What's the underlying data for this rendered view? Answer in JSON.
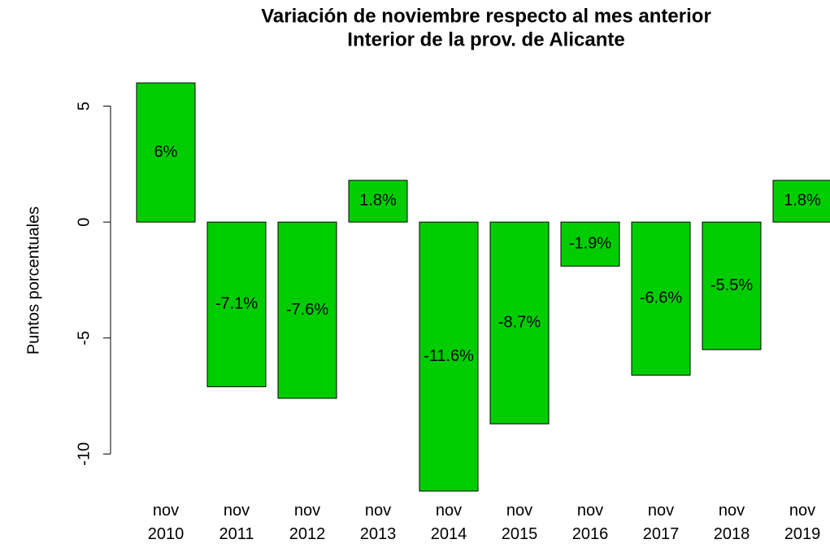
{
  "chart_data": {
    "type": "bar",
    "title": "Variación de noviembre respecto al mes anterior",
    "subtitle": "Interior de la prov. de Alicante",
    "y_label": "Puntos porcentuales",
    "categories": [
      "nov 2010",
      "nov 2011",
      "nov 2012",
      "nov 2013",
      "nov 2014",
      "nov 2015",
      "nov 2016",
      "nov 2017",
      "nov 2018",
      "nov 2019"
    ],
    "values": [
      6,
      -7.1,
      -7.6,
      1.8,
      -11.6,
      -8.7,
      -1.9,
      -6.6,
      -5.5,
      1.8
    ],
    "value_labels": [
      "6%",
      "-7.1%",
      "-7.6%",
      "1.8%",
      "-11.6%",
      "-8.7%",
      "-1.9%",
      "-6.6%",
      "-5.5%",
      "1.8%"
    ],
    "color": "#00cd00",
    "ylim": [
      -11.6,
      6
    ],
    "yticks": [
      -10,
      -5,
      0,
      5
    ],
    "grid": false
  }
}
